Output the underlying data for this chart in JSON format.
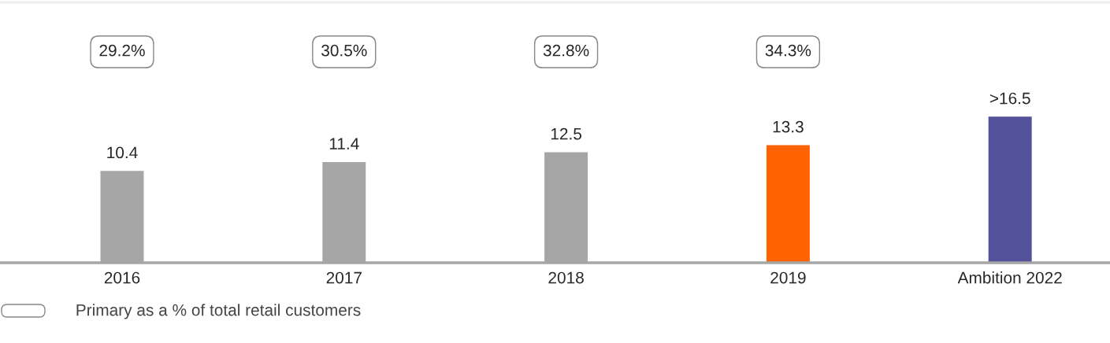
{
  "chart_data": {
    "type": "bar",
    "categories": [
      "2016",
      "2017",
      "2018",
      "2019",
      "Ambition 2022"
    ],
    "values": [
      10.4,
      11.4,
      12.5,
      13.3,
      16.5
    ],
    "value_labels": [
      "10.4",
      "11.4",
      "12.5",
      "13.3",
      ">16.5"
    ],
    "colors": [
      "#a6a6a6",
      "#a6a6a6",
      "#a6a6a6",
      "#ff6200",
      "#525199"
    ],
    "ylim": [
      0,
      29.3
    ],
    "tick_labels": "x",
    "grid": false,
    "annotations": [
      "29.2%",
      "30.5%",
      "32.8%",
      "34.3%",
      "Primary as a % of total retail customers"
    ]
  }
}
